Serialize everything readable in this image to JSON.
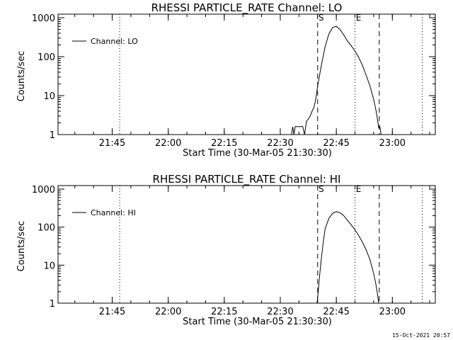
{
  "chart_data": [
    {
      "type": "line",
      "title": "RHESSI PARTICLE_RATE Channel: LO",
      "xlabel": "Start Time (30-Mar-05 21:30:30)",
      "ylabel": "Counts/sec",
      "yscale": "log",
      "ylim": [
        1,
        1000
      ],
      "xlim": [
        "21:30:30",
        "23:11:30"
      ],
      "x_ticks": [
        "21:45",
        "22:00",
        "22:15",
        "22:30",
        "22:45",
        "23:00"
      ],
      "y_ticks": [
        "1",
        "10",
        "100",
        "1000"
      ],
      "legend": {
        "placement": "top-left",
        "label": "Channel: LO"
      },
      "markers": [
        {
          "label": "S",
          "time": "22:40:00",
          "style": "dashed"
        },
        {
          "label": "E",
          "time": "22:50:00",
          "style": "dotted"
        },
        {
          "label": "",
          "time": "22:56:30",
          "style": "dashed"
        },
        {
          "label": "",
          "time": "21:47:00",
          "style": "dotted"
        },
        {
          "label": "",
          "time": "23:08:00",
          "style": "dotted"
        }
      ],
      "series": [
        {
          "name": "Channel: LO",
          "x": [
            "22:33:00",
            "22:33:20",
            "22:33:40",
            "22:34:00",
            "22:34:20",
            "22:35:00",
            "22:35:20",
            "22:36:00",
            "22:36:30",
            "22:37:00",
            "22:37:30",
            "22:38:00",
            "22:38:30",
            "22:39:00",
            "22:39:30",
            "22:40:00",
            "22:41:00",
            "22:42:00",
            "22:43:00",
            "22:44:00",
            "22:45:00",
            "22:46:00",
            "22:47:00",
            "22:48:00",
            "22:49:00",
            "22:50:00",
            "22:51:00",
            "22:52:00",
            "22:53:00",
            "22:54:00",
            "22:55:00",
            "22:55:40",
            "22:56:00",
            "22:56:20",
            "22:56:40",
            "22:57:00"
          ],
          "y": [
            1,
            1.6,
            1,
            1.6,
            1.6,
            1.6,
            1.6,
            1.6,
            1,
            2.2,
            2.5,
            3,
            4,
            5,
            8,
            18,
            60,
            180,
            380,
            560,
            600,
            500,
            360,
            250,
            190,
            140,
            95,
            60,
            33,
            18,
            8,
            4,
            2.5,
            1.5,
            1.6,
            1
          ]
        }
      ]
    },
    {
      "type": "line",
      "title": "RHESSI PARTICLE_RATE Channel: HI",
      "xlabel": "Start Time (30-Mar-05 21:30:30)",
      "ylabel": "Counts/sec",
      "yscale": "log",
      "ylim": [
        1,
        1000
      ],
      "xlim": [
        "21:30:30",
        "23:11:30"
      ],
      "x_ticks": [
        "21:45",
        "22:00",
        "22:15",
        "22:30",
        "22:45",
        "23:00"
      ],
      "y_ticks": [
        "1",
        "10",
        "100",
        "1000"
      ],
      "legend": {
        "placement": "top-left",
        "label": "Channel: HI"
      },
      "markers": [
        {
          "label": "S",
          "time": "22:40:00",
          "style": "dashed"
        },
        {
          "label": "E",
          "time": "22:50:00",
          "style": "dotted"
        },
        {
          "label": "",
          "time": "22:56:30",
          "style": "dashed"
        },
        {
          "label": "",
          "time": "21:47:00",
          "style": "dotted"
        },
        {
          "label": "",
          "time": "23:08:00",
          "style": "dotted"
        }
      ],
      "series": [
        {
          "name": "Channel: HI",
          "x": [
            "22:39:50",
            "22:40:10",
            "22:40:30",
            "22:41:00",
            "22:41:30",
            "22:42:00",
            "22:43:00",
            "22:44:00",
            "22:45:00",
            "22:46:00",
            "22:47:00",
            "22:48:00",
            "22:49:00",
            "22:50:00",
            "22:51:00",
            "22:52:00",
            "22:53:00",
            "22:54:00",
            "22:55:00",
            "22:55:30",
            "22:56:00",
            "22:56:20"
          ],
          "y": [
            1,
            2,
            5,
            15,
            40,
            90,
            170,
            230,
            255,
            240,
            200,
            150,
            115,
            85,
            60,
            40,
            25,
            14,
            6,
            3.5,
            1.8,
            1
          ]
        }
      ]
    }
  ],
  "timestamp": "15-Oct-2021 20:57"
}
